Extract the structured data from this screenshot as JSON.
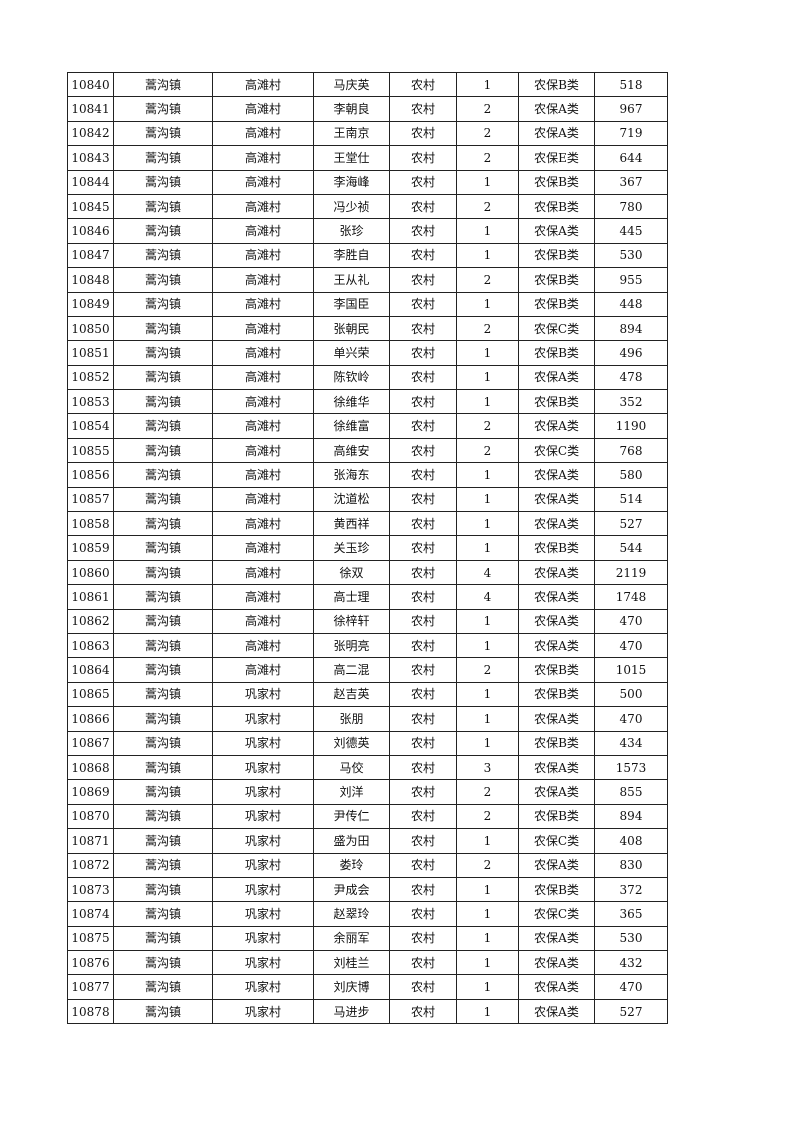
{
  "table": {
    "rows": [
      [
        "10840",
        "蒿沟镇",
        "高滩村",
        "马庆英",
        "农村",
        "1",
        "农保B类",
        "518"
      ],
      [
        "10841",
        "蒿沟镇",
        "高滩村",
        "李朝良",
        "农村",
        "2",
        "农保A类",
        "967"
      ],
      [
        "10842",
        "蒿沟镇",
        "高滩村",
        "王南京",
        "农村",
        "2",
        "农保A类",
        "719"
      ],
      [
        "10843",
        "蒿沟镇",
        "高滩村",
        "王堂仕",
        "农村",
        "2",
        "农保E类",
        "644"
      ],
      [
        "10844",
        "蒿沟镇",
        "高滩村",
        "李海峰",
        "农村",
        "1",
        "农保B类",
        "367"
      ],
      [
        "10845",
        "蒿沟镇",
        "高滩村",
        "冯少祯",
        "农村",
        "2",
        "农保B类",
        "780"
      ],
      [
        "10846",
        "蒿沟镇",
        "高滩村",
        "张珍",
        "农村",
        "1",
        "农保A类",
        "445"
      ],
      [
        "10847",
        "蒿沟镇",
        "高滩村",
        "李胜自",
        "农村",
        "1",
        "农保B类",
        "530"
      ],
      [
        "10848",
        "蒿沟镇",
        "高滩村",
        "王从礼",
        "农村",
        "2",
        "农保B类",
        "955"
      ],
      [
        "10849",
        "蒿沟镇",
        "高滩村",
        "李国臣",
        "农村",
        "1",
        "农保B类",
        "448"
      ],
      [
        "10850",
        "蒿沟镇",
        "高滩村",
        "张朝民",
        "农村",
        "2",
        "农保C类",
        "894"
      ],
      [
        "10851",
        "蒿沟镇",
        "高滩村",
        "单兴荣",
        "农村",
        "1",
        "农保B类",
        "496"
      ],
      [
        "10852",
        "蒿沟镇",
        "高滩村",
        "陈钦岭",
        "农村",
        "1",
        "农保A类",
        "478"
      ],
      [
        "10853",
        "蒿沟镇",
        "高滩村",
        "徐维华",
        "农村",
        "1",
        "农保B类",
        "352"
      ],
      [
        "10854",
        "蒿沟镇",
        "高滩村",
        "徐维富",
        "农村",
        "2",
        "农保A类",
        "1190"
      ],
      [
        "10855",
        "蒿沟镇",
        "高滩村",
        "高维安",
        "农村",
        "2",
        "农保C类",
        "768"
      ],
      [
        "10856",
        "蒿沟镇",
        "高滩村",
        "张海东",
        "农村",
        "1",
        "农保A类",
        "580"
      ],
      [
        "10857",
        "蒿沟镇",
        "高滩村",
        "沈道松",
        "农村",
        "1",
        "农保A类",
        "514"
      ],
      [
        "10858",
        "蒿沟镇",
        "高滩村",
        "黄西祥",
        "农村",
        "1",
        "农保A类",
        "527"
      ],
      [
        "10859",
        "蒿沟镇",
        "高滩村",
        "关玉珍",
        "农村",
        "1",
        "农保B类",
        "544"
      ],
      [
        "10860",
        "蒿沟镇",
        "高滩村",
        "徐双",
        "农村",
        "4",
        "农保A类",
        "2119"
      ],
      [
        "10861",
        "蒿沟镇",
        "高滩村",
        "高士理",
        "农村",
        "4",
        "农保A类",
        "1748"
      ],
      [
        "10862",
        "蒿沟镇",
        "高滩村",
        "徐梓轩",
        "农村",
        "1",
        "农保A类",
        "470"
      ],
      [
        "10863",
        "蒿沟镇",
        "高滩村",
        "张明亮",
        "农村",
        "1",
        "农保A类",
        "470"
      ],
      [
        "10864",
        "蒿沟镇",
        "高滩村",
        "高二混",
        "农村",
        "2",
        "农保B类",
        "1015"
      ],
      [
        "10865",
        "蒿沟镇",
        "巩家村",
        "赵吉英",
        "农村",
        "1",
        "农保B类",
        "500"
      ],
      [
        "10866",
        "蒿沟镇",
        "巩家村",
        "张朋",
        "农村",
        "1",
        "农保A类",
        "470"
      ],
      [
        "10867",
        "蒿沟镇",
        "巩家村",
        "刘德英",
        "农村",
        "1",
        "农保B类",
        "434"
      ],
      [
        "10868",
        "蒿沟镇",
        "巩家村",
        "马佼",
        "农村",
        "3",
        "农保A类",
        "1573"
      ],
      [
        "10869",
        "蒿沟镇",
        "巩家村",
        "刘洋",
        "农村",
        "2",
        "农保A类",
        "855"
      ],
      [
        "10870",
        "蒿沟镇",
        "巩家村",
        "尹传仁",
        "农村",
        "2",
        "农保B类",
        "894"
      ],
      [
        "10871",
        "蒿沟镇",
        "巩家村",
        "盛为田",
        "农村",
        "1",
        "农保C类",
        "408"
      ],
      [
        "10872",
        "蒿沟镇",
        "巩家村",
        "娄玲",
        "农村",
        "2",
        "农保A类",
        "830"
      ],
      [
        "10873",
        "蒿沟镇",
        "巩家村",
        "尹成会",
        "农村",
        "1",
        "农保B类",
        "372"
      ],
      [
        "10874",
        "蒿沟镇",
        "巩家村",
        "赵翠玲",
        "农村",
        "1",
        "农保C类",
        "365"
      ],
      [
        "10875",
        "蒿沟镇",
        "巩家村",
        "余丽军",
        "农村",
        "1",
        "农保A类",
        "530"
      ],
      [
        "10876",
        "蒿沟镇",
        "巩家村",
        "刘桂兰",
        "农村",
        "1",
        "农保A类",
        "432"
      ],
      [
        "10877",
        "蒿沟镇",
        "巩家村",
        "刘庆博",
        "农村",
        "1",
        "农保A类",
        "470"
      ],
      [
        "10878",
        "蒿沟镇",
        "巩家村",
        "马进步",
        "农村",
        "1",
        "农保A类",
        "527"
      ]
    ]
  }
}
